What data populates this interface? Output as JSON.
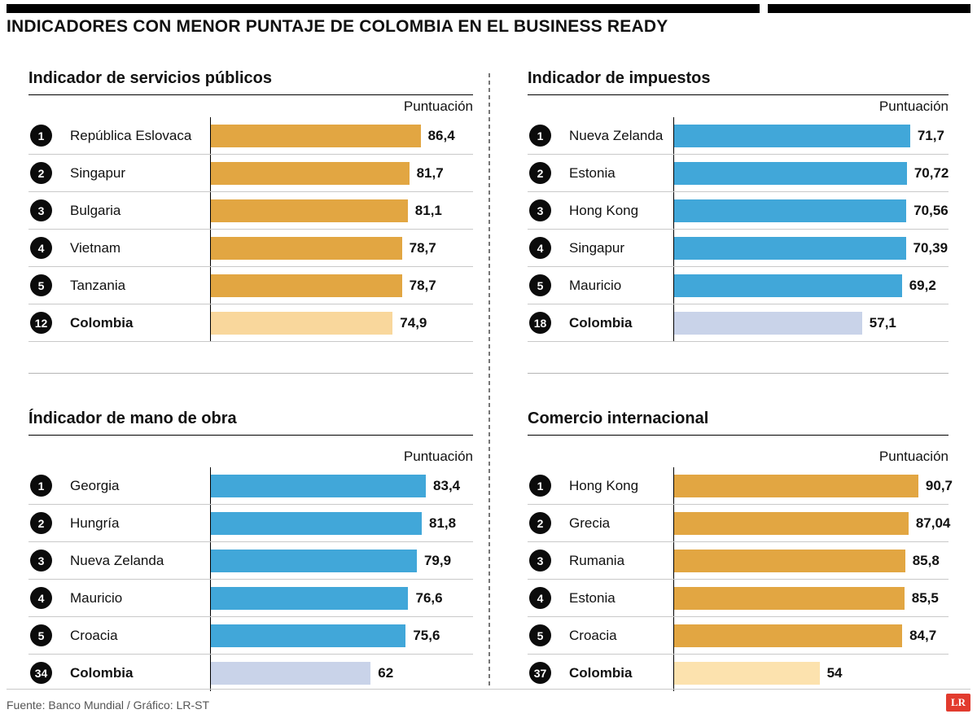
{
  "header": {
    "title": "INDICADORES CON MENOR PUNTAJE DE COLOMBIA EN EL BUSINESS READY"
  },
  "footer": {
    "source": "Fuente: Banco Mundial / Gráfico: LR-ST",
    "logo_text": "LR",
    "logo_color": "#e23b2e"
  },
  "chart_data": [
    {
      "type": "bar",
      "orientation": "horizontal",
      "title": "Indicador de servicios públicos",
      "score_label": "Puntuación",
      "bar_color": "#e2a642",
      "highlight_bar_color": "#f9d79c",
      "value_range": [
        0,
        100
      ],
      "bar_fill_pct": 80,
      "rows": [
        {
          "rank": "1",
          "country": "República Eslovaca",
          "value": 86.4,
          "value_label": "86,4",
          "highlight": false
        },
        {
          "rank": "2",
          "country": "Singapur",
          "value": 81.7,
          "value_label": "81,7",
          "highlight": false
        },
        {
          "rank": "3",
          "country": "Bulgaria",
          "value": 81.1,
          "value_label": "81,1",
          "highlight": false
        },
        {
          "rank": "4",
          "country": "Vietnam",
          "value": 78.7,
          "value_label": "78,7",
          "highlight": false
        },
        {
          "rank": "5",
          "country": "Tanzania",
          "value": 78.7,
          "value_label": "78,7",
          "highlight": false
        },
        {
          "rank": "12",
          "country": "Colombia",
          "value": 74.9,
          "value_label": "74,9",
          "highlight": true
        }
      ]
    },
    {
      "type": "bar",
      "orientation": "horizontal",
      "title": "Indicador de impuestos",
      "score_label": "Puntuación",
      "bar_color": "#41a7d9",
      "highlight_bar_color": "#c9d3e9",
      "value_range": [
        0,
        100
      ],
      "bar_fill_pct": 86,
      "rows": [
        {
          "rank": "1",
          "country": "Nueva Zelanda",
          "value": 71.7,
          "value_label": "71,7",
          "highlight": false
        },
        {
          "rank": "2",
          "country": "Estonia",
          "value": 70.72,
          "value_label": "70,72",
          "highlight": false
        },
        {
          "rank": "3",
          "country": "Hong Kong",
          "value": 70.56,
          "value_label": "70,56",
          "highlight": false
        },
        {
          "rank": "4",
          "country": "Singapur",
          "value": 70.39,
          "value_label": "70,39",
          "highlight": false
        },
        {
          "rank": "5",
          "country": "Mauricio",
          "value": 69.2,
          "value_label": "69,2",
          "highlight": false
        },
        {
          "rank": "18",
          "country": "Colombia",
          "value": 57.1,
          "value_label": "57,1",
          "highlight": true
        }
      ]
    },
    {
      "type": "bar",
      "orientation": "horizontal",
      "title": "Índicador de mano de obra",
      "score_label": "Puntuación",
      "bar_color": "#41a7d9",
      "highlight_bar_color": "#c9d3e9",
      "value_range": [
        0,
        100
      ],
      "bar_fill_pct": 82,
      "rows": [
        {
          "rank": "1",
          "country": "Georgia",
          "value": 83.4,
          "value_label": "83,4",
          "highlight": false
        },
        {
          "rank": "2",
          "country": "Hungría",
          "value": 81.8,
          "value_label": "81,8",
          "highlight": false
        },
        {
          "rank": "3",
          "country": "Nueva Zelanda",
          "value": 79.9,
          "value_label": "79,9",
          "highlight": false
        },
        {
          "rank": "4",
          "country": "Mauricio",
          "value": 76.6,
          "value_label": "76,6",
          "highlight": false
        },
        {
          "rank": "5",
          "country": "Croacia",
          "value": 75.6,
          "value_label": "75,6",
          "highlight": false
        },
        {
          "rank": "34",
          "country": "Colombia",
          "value": 62,
          "value_label": "62",
          "highlight": true
        }
      ]
    },
    {
      "type": "bar",
      "orientation": "horizontal",
      "title": "Comercio internacional",
      "score_label": "Puntuación",
      "bar_color": "#e2a642",
      "highlight_bar_color": "#fce2ae",
      "value_range": [
        0,
        100
      ],
      "bar_fill_pct": 89,
      "rows": [
        {
          "rank": "1",
          "country": "Hong Kong",
          "value": 90.7,
          "value_label": "90,7",
          "highlight": false
        },
        {
          "rank": "2",
          "country": "Grecia",
          "value": 87.04,
          "value_label": "87,04",
          "highlight": false
        },
        {
          "rank": "3",
          "country": "Rumania",
          "value": 85.8,
          "value_label": "85,8",
          "highlight": false
        },
        {
          "rank": "4",
          "country": "Estonia",
          "value": 85.5,
          "value_label": "85,5",
          "highlight": false
        },
        {
          "rank": "5",
          "country": "Croacia",
          "value": 84.7,
          "value_label": "84,7",
          "highlight": false
        },
        {
          "rank": "37",
          "country": "Colombia",
          "value": 54,
          "value_label": "54",
          "highlight": true
        }
      ]
    }
  ]
}
